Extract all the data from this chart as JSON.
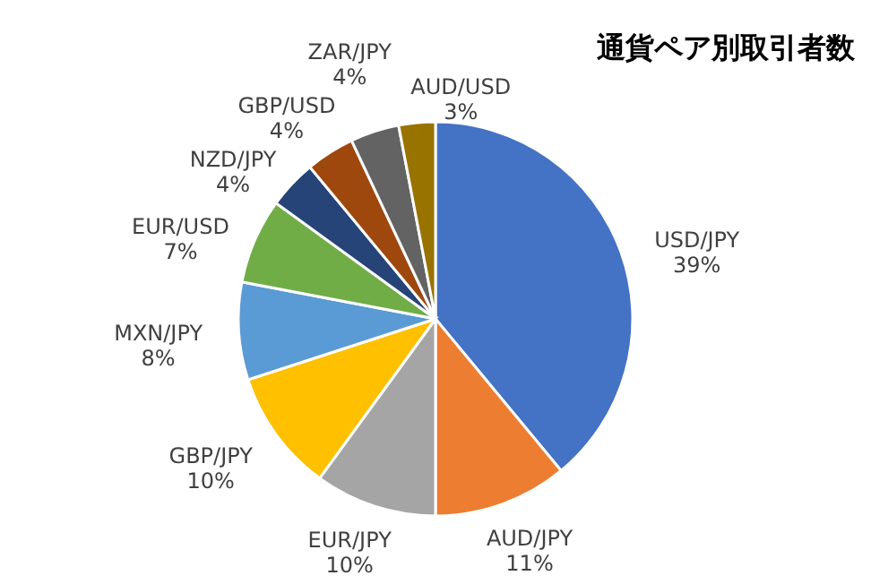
{
  "chart_data": {
    "type": "pie",
    "title": "通貨ペア別取引者数",
    "categories": [
      "USD/JPY",
      "AUD/JPY",
      "EUR/JPY",
      "GBP/JPY",
      "MXN/JPY",
      "EUR/USD",
      "NZD/JPY",
      "GBP/USD",
      "ZAR/JPY",
      "AUD/USD"
    ],
    "values": [
      39,
      11,
      10,
      10,
      8,
      7,
      4,
      4,
      4,
      3
    ],
    "value_labels": [
      "39%",
      "11%",
      "10%",
      "10%",
      "8%",
      "7%",
      "4%",
      "4%",
      "4%",
      "3%"
    ],
    "colors": [
      "#4472c4",
      "#ed7d31",
      "#a5a5a5",
      "#ffc000",
      "#5b9bd5",
      "#70ad47",
      "#264478",
      "#9e480e",
      "#636363",
      "#997300"
    ],
    "legend": false
  }
}
